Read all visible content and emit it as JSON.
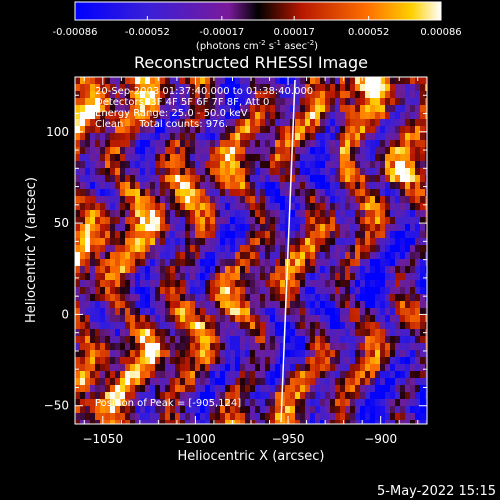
{
  "colorbar": {
    "tick_labels": [
      "-0.00086",
      "-0.00052",
      "-0.00017",
      "0.00017",
      "0.00052",
      "0.00086"
    ],
    "tick_values": [
      -0.00086,
      -0.00052,
      -0.00017,
      0.00017,
      0.00052,
      0.00086
    ],
    "range": [
      -0.00086,
      0.00086
    ],
    "unit_label": "(photons cm",
    "unit_exp1": "-2",
    "unit_mid": " s",
    "unit_exp2": "-1",
    "unit_mid2": " asec",
    "unit_exp3": "-2",
    "unit_end": ")"
  },
  "info": {
    "line1": "20-Sep-2003 01:37:40.000 to 01:38:40.000",
    "line2": "Detectors: 3F 4F 5F 6F 7F 8F, Att 0",
    "line3": "Energy Range: 25.0 - 50.0 keV",
    "line4": "Clean     Total counts: 976.",
    "peak": "Position of Peak = [-905,124]"
  },
  "timestamp": "5-May-2022 15:15",
  "colors": {
    "background": "#000000",
    "limb_line": "#ffffff"
  },
  "chart_data": {
    "type": "heatmap",
    "title": "Reconstructed RHESSI Image",
    "xlabel": "Heliocentric X (arcsec)",
    "ylabel": "Heliocentric Y (arcsec)",
    "xlim": [
      -1065,
      -875
    ],
    "ylim": [
      -60,
      130
    ],
    "xticks": [
      -1050,
      -1000,
      -950,
      -900
    ],
    "yticks": [
      -50,
      0,
      50,
      100
    ],
    "xtick_labels": [
      "−1050",
      "−1000",
      "−950",
      "−900"
    ],
    "ytick_labels": [
      "−50",
      "0",
      "50",
      "100"
    ],
    "peak_position": [
      -905,
      124
    ],
    "colormap": "blue-purple-red-yellow-white",
    "grid": false
  }
}
